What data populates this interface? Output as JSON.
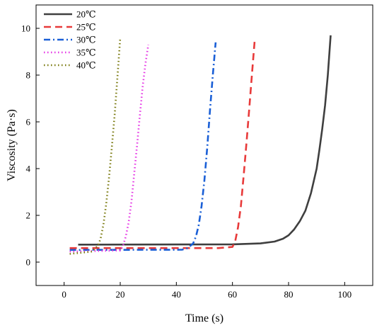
{
  "chart_data": {
    "type": "line",
    "xlabel": "Time (s)",
    "ylabel": "Viscosity (Pa·s)",
    "xlim": [
      -10,
      110
    ],
    "ylim": [
      -1,
      11
    ],
    "xticks": [
      0,
      20,
      40,
      60,
      80,
      100
    ],
    "yticks": [
      0,
      2,
      4,
      6,
      8,
      10
    ],
    "grid": false,
    "legend_position": "top-left",
    "series": [
      {
        "name": "20℃",
        "color": "#3f3f3f",
        "dash": "solid",
        "x": [
          5,
          60,
          70,
          75,
          78,
          80,
          82,
          84,
          86,
          88,
          90,
          91,
          92,
          93,
          94,
          95
        ],
        "y": [
          0.75,
          0.76,
          0.8,
          0.88,
          1.0,
          1.15,
          1.4,
          1.75,
          2.2,
          2.95,
          4.0,
          4.8,
          5.7,
          6.7,
          8.0,
          9.7
        ]
      },
      {
        "name": "25℃",
        "color": "#e83a3a",
        "dash": "dashed",
        "x": [
          2,
          55,
          60,
          61,
          62,
          63,
          64,
          65,
          66,
          67,
          68
        ],
        "y": [
          0.6,
          0.6,
          0.65,
          0.9,
          1.5,
          2.4,
          3.7,
          5.1,
          6.6,
          8.1,
          9.6
        ]
      },
      {
        "name": "30℃",
        "color": "#1a5fd6",
        "dash": "dashdot",
        "x": [
          2,
          42,
          44,
          46,
          47,
          48,
          49,
          50,
          51,
          52,
          53,
          54
        ],
        "y": [
          0.52,
          0.53,
          0.6,
          0.8,
          1.1,
          1.6,
          2.4,
          3.5,
          4.9,
          6.5,
          8.0,
          9.4
        ]
      },
      {
        "name": "35℃",
        "color": "#e536e5",
        "dash": "dotted",
        "x": [
          2,
          20,
          21,
          22,
          23,
          24,
          25,
          26,
          27,
          28,
          29,
          30
        ],
        "y": [
          0.45,
          0.5,
          0.7,
          1.1,
          1.7,
          2.6,
          3.8,
          5.0,
          6.3,
          7.5,
          8.5,
          9.3
        ]
      },
      {
        "name": "40℃",
        "color": "#7a7a10",
        "dash": "dotted",
        "x": [
          2,
          10,
          12,
          13,
          14,
          15,
          16,
          17,
          18,
          19,
          20
        ],
        "y": [
          0.35,
          0.45,
          0.7,
          1.0,
          1.6,
          2.5,
          3.6,
          4.9,
          6.3,
          7.9,
          9.6
        ]
      }
    ]
  }
}
